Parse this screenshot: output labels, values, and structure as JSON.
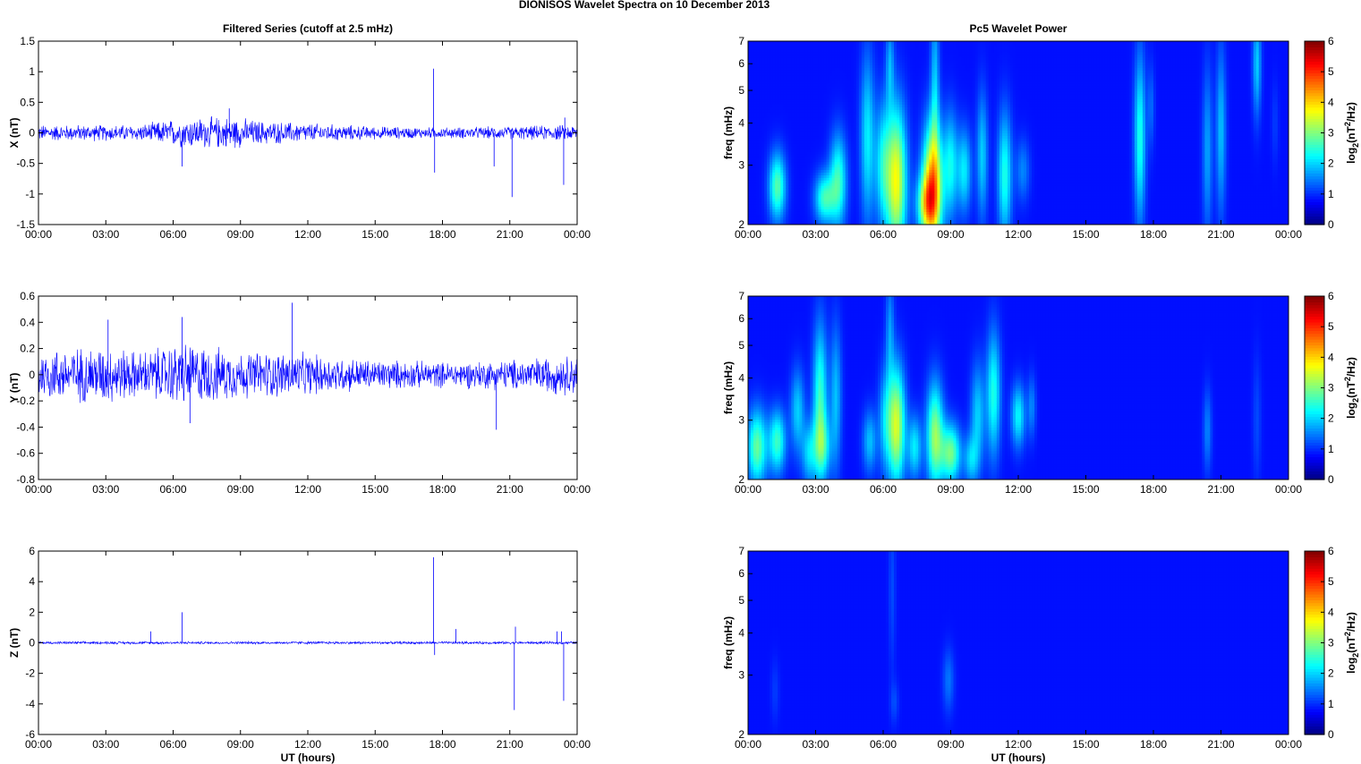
{
  "figure": {
    "suptitle": "DIONISOS Wavelet Spectra on 10 December  2013",
    "left_title": "Filtered Series (cutoff at 2.5 mHz)",
    "right_title": "Pc5 Wavelet Power",
    "xlabel": "UT (hours)"
  },
  "chart_data": [
    {
      "type": "line",
      "id": "ts-x",
      "ylabel": "X (nT)",
      "ylim": [
        -1.5,
        1.5
      ],
      "yticks": [
        "-1.5",
        "-1",
        "-0.5",
        "0",
        "0.5",
        "1",
        "1.5"
      ],
      "xticks": [
        "00:00",
        "03:00",
        "06:00",
        "09:00",
        "12:00",
        "15:00",
        "18:00",
        "21:00",
        "00:00"
      ],
      "xlim_hours": [
        0,
        24
      ],
      "color": "#0000ff",
      "noise_envelope": [
        [
          0,
          0.15
        ],
        [
          4.5,
          0.15
        ],
        [
          5.5,
          0.22
        ],
        [
          6.5,
          0.28
        ],
        [
          8.5,
          0.3
        ],
        [
          10,
          0.22
        ],
        [
          12,
          0.18
        ],
        [
          15,
          0.12
        ],
        [
          18,
          0.1
        ],
        [
          21,
          0.12
        ],
        [
          24,
          0.15
        ]
      ],
      "spikes": [
        [
          6.4,
          -0.55
        ],
        [
          8.5,
          0.4
        ],
        [
          17.6,
          1.05
        ],
        [
          17.65,
          -0.65
        ],
        [
          20.3,
          -0.55
        ],
        [
          21.1,
          -1.05
        ],
        [
          23.4,
          -0.85
        ],
        [
          23.45,
          0.25
        ]
      ]
    },
    {
      "type": "line",
      "id": "ts-y",
      "ylabel": "Y (nT)",
      "ylim": [
        -0.8,
        0.6
      ],
      "yticks": [
        "-0.8",
        "-0.6",
        "-0.4",
        "-0.2",
        "0",
        "0.2",
        "0.4",
        "0.6"
      ],
      "xticks": [
        "00:00",
        "03:00",
        "06:00",
        "09:00",
        "12:00",
        "15:00",
        "18:00",
        "21:00",
        "00:00"
      ],
      "xlim_hours": [
        0,
        24
      ],
      "color": "#0000ff",
      "noise_envelope": [
        [
          0,
          0.22
        ],
        [
          3,
          0.25
        ],
        [
          4.5,
          0.2
        ],
        [
          6.5,
          0.28
        ],
        [
          9,
          0.2
        ],
        [
          11,
          0.2
        ],
        [
          13,
          0.16
        ],
        [
          15,
          0.13
        ],
        [
          18,
          0.11
        ],
        [
          21,
          0.13
        ],
        [
          24,
          0.18
        ]
      ],
      "spikes": [
        [
          3.1,
          0.42
        ],
        [
          6.4,
          0.44
        ],
        [
          6.75,
          -0.37
        ],
        [
          11.3,
          0.55
        ],
        [
          20.4,
          -0.42
        ]
      ]
    },
    {
      "type": "line",
      "id": "ts-z",
      "ylabel": "Z (nT)",
      "ylim": [
        -6,
        6
      ],
      "yticks": [
        "-6",
        "-4",
        "-2",
        "0",
        "2",
        "4",
        "6"
      ],
      "xticks": [
        "00:00",
        "03:00",
        "06:00",
        "09:00",
        "12:00",
        "15:00",
        "18:00",
        "21:00",
        "00:00"
      ],
      "xlim_hours": [
        0,
        24
      ],
      "color": "#0000ff",
      "noise_envelope": [
        [
          0,
          0.1
        ],
        [
          24,
          0.1
        ]
      ],
      "spikes": [
        [
          5.0,
          0.75
        ],
        [
          6.4,
          2.0
        ],
        [
          17.6,
          5.6
        ],
        [
          17.65,
          -0.8
        ],
        [
          18.6,
          0.9
        ],
        [
          21.2,
          -4.4
        ],
        [
          21.25,
          1.05
        ],
        [
          23.4,
          -3.8
        ],
        [
          23.1,
          0.75
        ],
        [
          23.3,
          0.75
        ]
      ]
    },
    {
      "type": "heatmap",
      "id": "wv-x",
      "ylabel": "freq (mHz)",
      "ylim_mhz": [
        2,
        7
      ],
      "yscale": "log",
      "yticks": [
        "2",
        "3",
        "4",
        "5",
        "6",
        "7"
      ],
      "xticks": [
        "00:00",
        "03:00",
        "06:00",
        "09:00",
        "12:00",
        "15:00",
        "18:00",
        "21:00",
        "00:00"
      ],
      "colorbar_label": "log2(nT^2/Hz)",
      "colorbar_ticks": [
        "0",
        "1",
        "2",
        "3",
        "4",
        "5",
        "6"
      ],
      "clim": [
        0,
        6
      ],
      "colormap": "jet",
      "blobs": [
        [
          1.3,
          2.6,
          2.2,
          0.12,
          0.16
        ],
        [
          3.4,
          2.4,
          2.0,
          0.14,
          0.12
        ],
        [
          4.0,
          2.7,
          2.0,
          0.12,
          0.22
        ],
        [
          5.3,
          3.6,
          1.5,
          0.1,
          0.4
        ],
        [
          6.0,
          3.0,
          1.6,
          0.12,
          0.3
        ],
        [
          6.6,
          2.7,
          3.2,
          0.14,
          0.35
        ],
        [
          6.3,
          6.0,
          1.0,
          0.06,
          0.2
        ],
        [
          7.9,
          2.3,
          2.0,
          0.14,
          0.14
        ],
        [
          8.2,
          2.6,
          4.0,
          0.14,
          0.3
        ],
        [
          8.3,
          5.3,
          1.2,
          0.06,
          0.4
        ],
        [
          9.0,
          3.0,
          1.6,
          0.1,
          0.25
        ],
        [
          9.6,
          2.9,
          1.5,
          0.1,
          0.2
        ],
        [
          10.4,
          3.2,
          1.3,
          0.08,
          0.3
        ],
        [
          11.4,
          2.8,
          1.8,
          0.1,
          0.3
        ],
        [
          12.2,
          2.9,
          0.8,
          0.1,
          0.15
        ],
        [
          17.4,
          3.6,
          1.8,
          0.08,
          0.4
        ],
        [
          17.9,
          4.5,
          0.6,
          0.05,
          0.2
        ],
        [
          20.4,
          3.3,
          1.0,
          0.07,
          0.4
        ],
        [
          21.0,
          3.8,
          1.2,
          0.07,
          0.4
        ],
        [
          22.6,
          6.0,
          1.3,
          0.06,
          0.25
        ],
        [
          23.4,
          4.0,
          0.3,
          0.05,
          0.2
        ]
      ]
    },
    {
      "type": "heatmap",
      "id": "wv-y",
      "ylabel": "freq (mHz)",
      "ylim_mhz": [
        2,
        7
      ],
      "yscale": "log",
      "yticks": [
        "2",
        "3",
        "4",
        "5",
        "6",
        "7"
      ],
      "xticks": [
        "00:00",
        "03:00",
        "06:00",
        "09:00",
        "12:00",
        "15:00",
        "18:00",
        "21:00",
        "00:00"
      ],
      "colorbar_label": "log2(nT^2/Hz)",
      "colorbar_ticks": [
        "0",
        "1",
        "2",
        "3",
        "4",
        "5",
        "6"
      ],
      "clim": [
        0,
        6
      ],
      "colormap": "jet",
      "blobs": [
        [
          0.4,
          2.5,
          2.3,
          0.14,
          0.18
        ],
        [
          1.3,
          2.6,
          2.0,
          0.12,
          0.15
        ],
        [
          2.2,
          3.2,
          1.3,
          0.1,
          0.2
        ],
        [
          2.7,
          2.4,
          1.3,
          0.1,
          0.15
        ],
        [
          3.2,
          3.5,
          2.0,
          0.1,
          0.35
        ],
        [
          3.3,
          2.5,
          1.5,
          0.12,
          0.15
        ],
        [
          3.9,
          3.5,
          1.2,
          0.08,
          0.35
        ],
        [
          5.4,
          2.6,
          1.2,
          0.1,
          0.15
        ],
        [
          6.1,
          3.0,
          1.2,
          0.1,
          0.25
        ],
        [
          6.6,
          2.9,
          3.0,
          0.12,
          0.28
        ],
        [
          6.3,
          5.6,
          0.9,
          0.06,
          0.25
        ],
        [
          7.4,
          2.5,
          1.5,
          0.1,
          0.15
        ],
        [
          8.3,
          2.7,
          2.6,
          0.12,
          0.25
        ],
        [
          9.0,
          2.4,
          2.4,
          0.14,
          0.14
        ],
        [
          9.9,
          2.3,
          1.2,
          0.1,
          0.12
        ],
        [
          10.2,
          3.1,
          1.3,
          0.1,
          0.25
        ],
        [
          10.9,
          3.6,
          1.8,
          0.1,
          0.3
        ],
        [
          12.0,
          3.1,
          1.6,
          0.1,
          0.15
        ],
        [
          12.6,
          3.3,
          0.8,
          0.06,
          0.15
        ],
        [
          20.4,
          2.8,
          0.8,
          0.06,
          0.2
        ],
        [
          22.6,
          3.0,
          0.4,
          0.06,
          0.3
        ]
      ]
    },
    {
      "type": "heatmap",
      "id": "wv-z",
      "ylabel": "freq (mHz)",
      "ylim_mhz": [
        2,
        7
      ],
      "yscale": "log",
      "yticks": [
        "2",
        "3",
        "4",
        "5",
        "6",
        "7"
      ],
      "xticks": [
        "00:00",
        "03:00",
        "06:00",
        "09:00",
        "12:00",
        "15:00",
        "18:00",
        "21:00",
        "00:00"
      ],
      "colorbar_label": "log2(nT^2/Hz)",
      "colorbar_ticks": [
        "0",
        "1",
        "2",
        "3",
        "4",
        "5",
        "6"
      ],
      "clim": [
        0,
        6
      ],
      "colormap": "jet",
      "blobs": [
        [
          1.2,
          2.7,
          0.3,
          0.06,
          0.15
        ],
        [
          6.4,
          5.5,
          0.4,
          0.05,
          0.4
        ],
        [
          6.5,
          2.5,
          0.4,
          0.06,
          0.1
        ],
        [
          8.9,
          2.9,
          0.7,
          0.08,
          0.15
        ]
      ]
    }
  ]
}
